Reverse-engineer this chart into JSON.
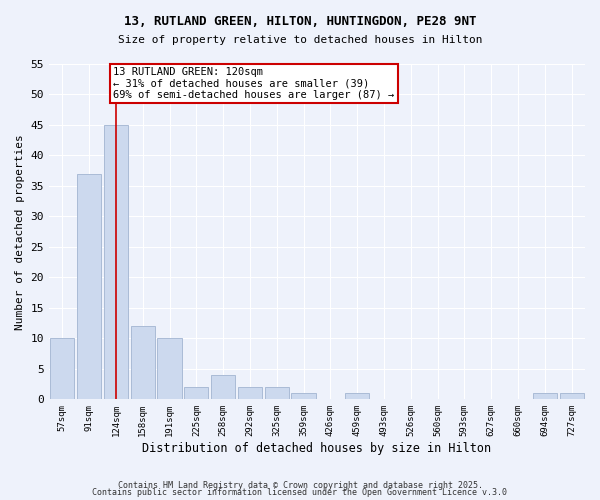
{
  "title": "13, RUTLAND GREEN, HILTON, HUNTINGDON, PE28 9NT",
  "subtitle": "Size of property relative to detached houses in Hilton",
  "xlabel": "Distribution of detached houses by size in Hilton",
  "ylabel": "Number of detached properties",
  "categories": [
    "57sqm",
    "91sqm",
    "124sqm",
    "158sqm",
    "191sqm",
    "225sqm",
    "258sqm",
    "292sqm",
    "325sqm",
    "359sqm",
    "426sqm",
    "459sqm",
    "493sqm",
    "526sqm",
    "560sqm",
    "593sqm",
    "627sqm",
    "660sqm",
    "694sqm",
    "727sqm"
  ],
  "values": [
    10,
    37,
    45,
    12,
    10,
    2,
    4,
    2,
    2,
    1,
    0,
    1,
    0,
    0,
    0,
    0,
    0,
    0,
    1,
    1
  ],
  "bar_color": "#ccd9ee",
  "bar_edge_color": "#aabbd6",
  "background_color": "#eef2fb",
  "grid_color": "#ffffff",
  "vline_x_index": 2,
  "vline_color": "#cc0000",
  "annotation_line1": "13 RUTLAND GREEN: 120sqm",
  "annotation_line2": "← 31% of detached houses are smaller (39)",
  "annotation_line3": "69% of semi-detached houses are larger (87) →",
  "annotation_box_color": "#ffffff",
  "annotation_box_edge": "#cc0000",
  "ylim": [
    0,
    55
  ],
  "yticks": [
    0,
    5,
    10,
    15,
    20,
    25,
    30,
    35,
    40,
    45,
    50,
    55
  ],
  "footnote1": "Contains HM Land Registry data © Crown copyright and database right 2025.",
  "footnote2": "Contains public sector information licensed under the Open Government Licence v.3.0",
  "title_fontsize": 9,
  "subtitle_fontsize": 8
}
